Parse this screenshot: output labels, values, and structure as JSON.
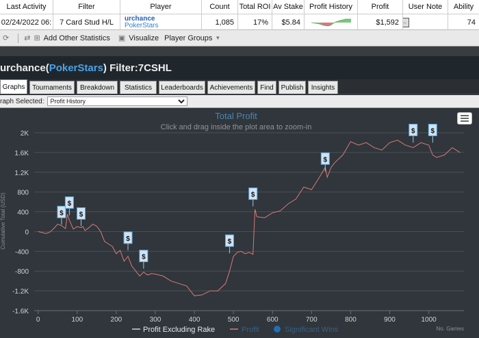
{
  "summary": {
    "headers": [
      "Last Activity",
      "Filter",
      "Player",
      "Count",
      "Total ROI",
      "Av Stake",
      "Profit History",
      "Profit",
      "User Note",
      "Ability"
    ],
    "row": {
      "last_activity": "02/24/2022 06:",
      "filter": "7 Card Stud H/L",
      "player_name": "urchance",
      "player_site": "PokerStars",
      "count": "1,085",
      "total_roi": "17%",
      "av_stake": "$5.84",
      "profit": "$1,592",
      "note_button": "...",
      "ability": "74"
    }
  },
  "toolbar": {
    "add_stats": "Add Other Statistics",
    "visualize": "Visualize",
    "player_groups": "Player Groups"
  },
  "title": {
    "player": "urchance",
    "open": " (",
    "site": "PokerStars",
    "rest": ") Filter:7CSHL"
  },
  "tabs": [
    "Graphs",
    "Tournaments",
    "Breakdown",
    "Statistics",
    "Leaderboards",
    "Achievements",
    "Find",
    "Publish",
    "Insights"
  ],
  "active_tab": "Graphs",
  "graph_select": {
    "label": "raph Selected:",
    "value": "Profit History"
  },
  "chart_data": {
    "type": "line",
    "title": "Total Profit",
    "subtitle": "Click and drag inside the plot area to zoom-in",
    "ylabel": "Cumulative Total (USD)",
    "xlabel": "No. Games",
    "xlim": [
      -10,
      1090
    ],
    "ylim": [
      -1600,
      2000
    ],
    "x_ticks": [
      0,
      100,
      200,
      300,
      400,
      500,
      600,
      700,
      800,
      900,
      1000
    ],
    "x_tick_labels": [
      "0",
      "100",
      "200",
      "300",
      "400",
      "500",
      "600",
      "700",
      "800",
      "900",
      "1000"
    ],
    "y_ticks": [
      -1600,
      -1200,
      -800,
      -400,
      0,
      400,
      800,
      1200,
      1600,
      2000
    ],
    "y_tick_labels": [
      "-1.6K",
      "-1.2K",
      "-800",
      "-400",
      "0",
      "400",
      "800",
      "1.2K",
      "1.6K",
      "2K"
    ],
    "legend": [
      "Profit Excluding Rake",
      "Profit",
      "Significant Wins"
    ],
    "legend_placement": "bottom",
    "colors": {
      "line": "#d87a7a",
      "marker": "#5aa8e0",
      "grid": "#4a5056",
      "text": "#cfd3d6"
    },
    "series": [
      {
        "name": "Profit",
        "x": [
          0,
          10,
          20,
          30,
          40,
          50,
          60,
          70,
          75,
          80,
          90,
          100,
          110,
          115,
          120,
          130,
          140,
          150,
          160,
          170,
          180,
          190,
          200,
          210,
          220,
          230,
          240,
          250,
          260,
          270,
          280,
          290,
          300,
          320,
          340,
          360,
          380,
          400,
          420,
          440,
          460,
          480,
          490,
          500,
          510,
          520,
          530,
          540,
          550,
          555,
          560,
          580,
          600,
          620,
          640,
          660,
          680,
          700,
          720,
          735,
          740,
          750,
          760,
          780,
          800,
          820,
          840,
          860,
          880,
          900,
          920,
          940,
          960,
          980,
          1000,
          1010,
          1020,
          1040,
          1060,
          1080
        ],
        "y": [
          0,
          -20,
          -40,
          -10,
          60,
          150,
          120,
          60,
          350,
          230,
          50,
          100,
          80,
          100,
          20,
          80,
          150,
          110,
          0,
          -200,
          -250,
          -300,
          -450,
          -380,
          -600,
          -500,
          -700,
          -800,
          -900,
          -820,
          -880,
          -850,
          -860,
          -900,
          -1000,
          -1050,
          -1100,
          -1300,
          -1280,
          -1200,
          -1200,
          -1050,
          -800,
          -500,
          -420,
          -400,
          -450,
          -420,
          -460,
          450,
          300,
          280,
          380,
          420,
          560,
          660,
          900,
          850,
          1100,
          1300,
          1100,
          1300,
          1400,
          1550,
          1820,
          1750,
          1800,
          1700,
          1650,
          1800,
          1850,
          1750,
          1700,
          1800,
          1750,
          1550,
          1500,
          1550,
          1700,
          1600
        ]
      }
    ],
    "significant_wins": [
      {
        "x": 60,
        "y": 140
      },
      {
        "x": 80,
        "y": 330
      },
      {
        "x": 110,
        "y": 110
      },
      {
        "x": 230,
        "y": -380
      },
      {
        "x": 270,
        "y": -750
      },
      {
        "x": 490,
        "y": -440
      },
      {
        "x": 550,
        "y": 510
      },
      {
        "x": 735,
        "y": 1220
      },
      {
        "x": 960,
        "y": 1800
      },
      {
        "x": 1010,
        "y": 1800
      }
    ]
  }
}
